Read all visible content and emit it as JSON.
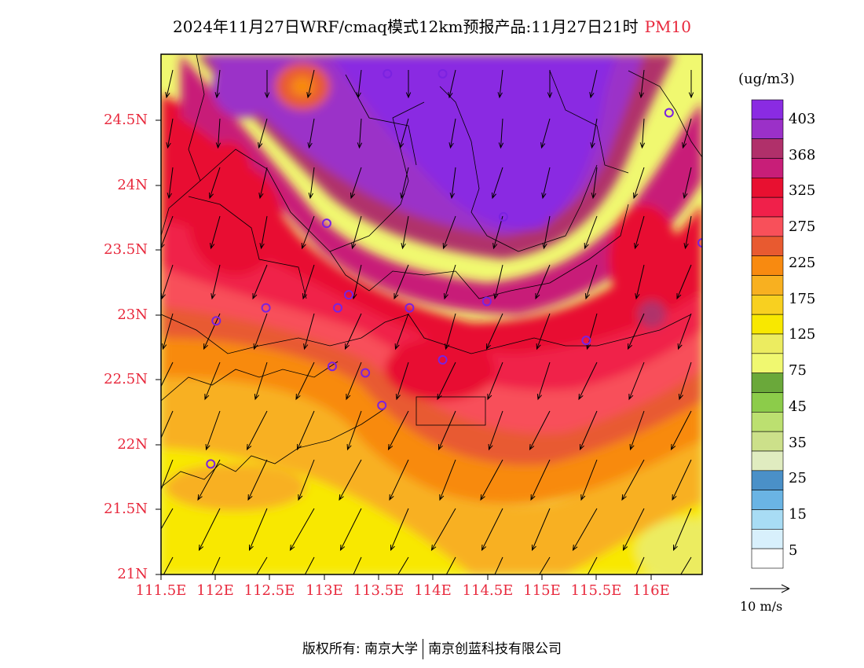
{
  "title": {
    "main": "2024年11月27日WRF/cmaq模式12km预报产品:11月27日21时",
    "variable": "PM10"
  },
  "map": {
    "lat_labels": [
      "24.5N",
      "24N",
      "23.5N",
      "23N",
      "22.5N",
      "22N",
      "21.5N",
      "21N"
    ],
    "lon_labels": [
      "111.5E",
      "112E",
      "112.5E",
      "113E",
      "113.5E",
      "114E",
      "114.5E",
      "115E",
      "115.5E",
      "116E"
    ],
    "lon_range": [
      111.5,
      116.4
    ],
    "lat_range": [
      21.0,
      25.0
    ],
    "stations": [
      [
        113.55,
        24.85
      ],
      [
        114.05,
        24.85
      ],
      [
        116.1,
        24.55
      ],
      [
        113.0,
        23.7
      ],
      [
        114.6,
        23.75
      ],
      [
        116.4,
        23.55
      ],
      [
        112.0,
        22.95
      ],
      [
        112.45,
        23.05
      ],
      [
        113.1,
        23.05
      ],
      [
        113.2,
        23.15
      ],
      [
        113.75,
        23.05
      ],
      [
        114.45,
        23.1
      ],
      [
        115.35,
        22.8
      ],
      [
        113.05,
        22.6
      ],
      [
        113.35,
        22.55
      ],
      [
        114.05,
        22.65
      ],
      [
        113.5,
        22.3
      ],
      [
        111.95,
        21.85
      ]
    ]
  },
  "colorbar": {
    "units": "(ug/m3)",
    "labels": [
      "403",
      "368",
      "325",
      "275",
      "225",
      "175",
      "125",
      "75",
      "45",
      "35",
      "25",
      "15",
      "5"
    ],
    "colors": [
      "#8a2be2",
      "#9b30c8",
      "#b0306a",
      "#c81e78",
      "#e81030",
      "#f0204a",
      "#f8505a",
      "#e85a30",
      "#f88a10",
      "#f8b020",
      "#f8d020",
      "#f8e800",
      "#ecec60",
      "#f0f870",
      "#6aa83a",
      "#8ccc4a",
      "#bce070",
      "#cce08a",
      "#e0ecc0",
      "#4a90c8",
      "#6ab4e4",
      "#a8dcf4",
      "#d8f0fc",
      "#ffffff"
    ]
  },
  "wind": {
    "reference_label": "10 m/s"
  },
  "footer": {
    "copyright": "版权所有: 南京大学",
    "company": "南京创蓝科技有限公司"
  }
}
